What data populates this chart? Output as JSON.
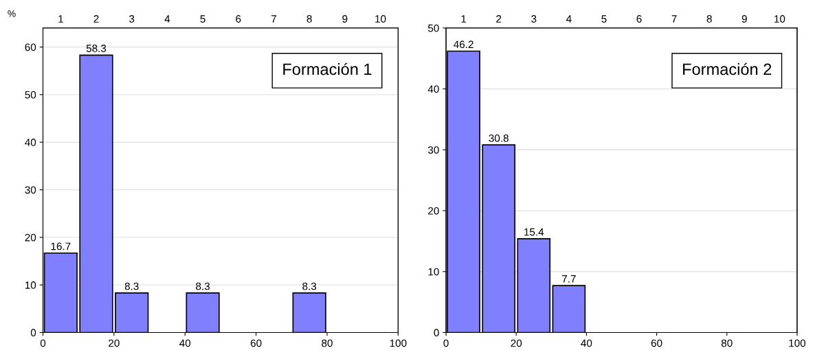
{
  "chart_data": [
    {
      "type": "histogram",
      "ylabel": "%",
      "annotations": [
        "Formación 1"
      ],
      "bins": [
        0,
        10,
        20,
        30,
        40,
        50,
        60,
        70,
        80,
        90,
        100
      ],
      "values": [
        16.7,
        58.3,
        8.3,
        0,
        8.3,
        0,
        0,
        8.3,
        0,
        0
      ],
      "value_labels": [
        "16.7",
        "58.3",
        "8.3",
        null,
        "8.3",
        null,
        null,
        "8.3",
        null,
        null
      ],
      "color": "#8080ff",
      "xlim": [
        0,
        100
      ],
      "xticks": [
        0,
        20,
        40,
        60,
        80,
        100
      ],
      "ylim": [
        0,
        64
      ],
      "yticks": [
        0,
        10,
        20,
        30,
        40,
        50,
        60
      ],
      "x2lim": [
        0.5,
        10.5
      ],
      "x2ticks": [
        1,
        2,
        3,
        4,
        5,
        6,
        7,
        8,
        9,
        10
      ],
      "grid": "y"
    },
    {
      "type": "histogram",
      "annotations": [
        "Formación 2"
      ],
      "bins": [
        0,
        10,
        20,
        30,
        40,
        50,
        60,
        70,
        80,
        90,
        100
      ],
      "values": [
        46.2,
        30.8,
        15.4,
        7.7,
        0,
        0,
        0,
        0,
        0,
        0
      ],
      "value_labels": [
        "46.2",
        "30.8",
        "15.4",
        "7.7",
        null,
        null,
        null,
        null,
        null,
        null
      ],
      "color": "#8080ff",
      "xlim": [
        0,
        100
      ],
      "xticks": [
        0,
        20,
        40,
        60,
        80,
        100
      ],
      "ylim": [
        0,
        50
      ],
      "yticks": [
        0,
        10,
        20,
        30,
        40,
        50
      ],
      "x2lim": [
        0.5,
        10.5
      ],
      "x2ticks": [
        1,
        2,
        3,
        4,
        5,
        6,
        7,
        8,
        9,
        10
      ],
      "grid": "y"
    }
  ]
}
